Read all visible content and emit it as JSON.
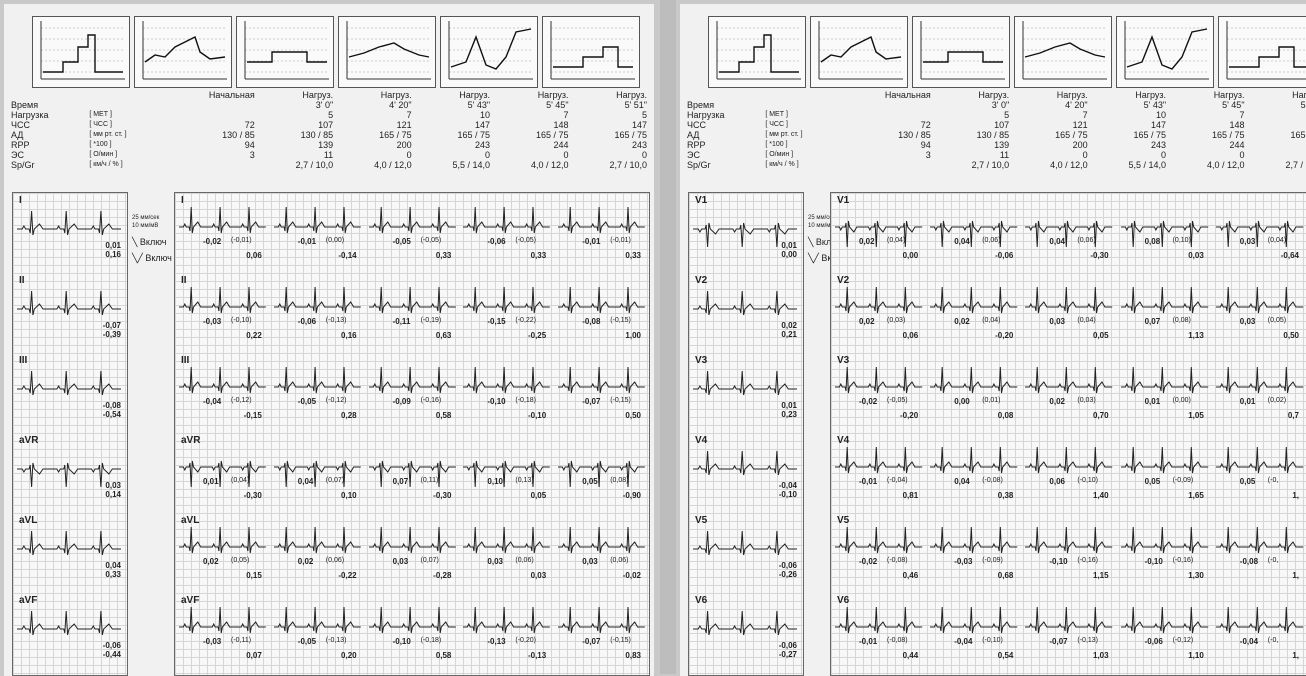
{
  "summary": {
    "col_headers": [
      "Начальная",
      "Нагруз.",
      "Нагруз.",
      "Нагруз.",
      "Нагруз.",
      "Нагруз."
    ],
    "rows": [
      {
        "label": "Время",
        "unit": "",
        "values": [
          "",
          "3' 0\"",
          "4' 20\"",
          "5' 43\"",
          "5' 45\"",
          "5' 51\""
        ]
      },
      {
        "label": "Нагрузка",
        "unit": "[ МЕТ ]",
        "values": [
          "",
          "5",
          "7",
          "10",
          "7",
          "5"
        ]
      },
      {
        "label": "ЧСС",
        "unit": "[ ЧСС ]",
        "values": [
          "72",
          "107",
          "121",
          "147",
          "148",
          "147"
        ]
      },
      {
        "label": "АД",
        "unit": "[ мм рт. ст. ]",
        "values": [
          "130 / 85",
          "130 / 85",
          "165 / 75",
          "165 / 75",
          "165 / 75",
          "165 / 75"
        ]
      },
      {
        "label": "RPP",
        "unit": "[ *100 ]",
        "values": [
          "94",
          "139",
          "200",
          "243",
          "244",
          "243"
        ]
      },
      {
        "label": "ЭС",
        "unit": "[ О/мин ]",
        "values": [
          "3",
          "11",
          "0",
          "0",
          "0",
          "0"
        ]
      },
      {
        "label": "Sp/Gr",
        "unit": "[ км/ч / % ]",
        "values": [
          "",
          "2,7 / 10,0",
          "4,0 / 12,0",
          "5,5 / 14,0",
          "4,0 / 12,0",
          "2,7 / 10,0"
        ]
      }
    ]
  },
  "calibration": {
    "speed": "25 мм/сек",
    "gain": "10 мм/мВ",
    "mark1": "Включ",
    "mark2": "Включ"
  },
  "left_sheet": {
    "baseline": [
      {
        "lead": "I",
        "v1": "0,01",
        "v2": "0,16"
      },
      {
        "lead": "II",
        "v1": "-0,07",
        "v2": "-0,39"
      },
      {
        "lead": "III",
        "v1": "-0,08",
        "v2": "-0,54"
      },
      {
        "lead": "aVR",
        "v1": "0,03",
        "v2": "0,14"
      },
      {
        "lead": "aVL",
        "v1": "0,04",
        "v2": "0,33"
      },
      {
        "lead": "aVF",
        "v1": "-0,06",
        "v2": "-0,44"
      }
    ],
    "stages": [
      {
        "lead": "I",
        "beats": [
          [
            "-0,02",
            "(-0,01)",
            "0,06"
          ],
          [
            "-0,01",
            "(0,00)",
            "-0,14"
          ],
          [
            "-0,05",
            "(-0,05)",
            "0,33"
          ],
          [
            "-0,06",
            "(-0,05)",
            "0,33"
          ],
          [
            "-0,01",
            "(-0,01)",
            "0,33"
          ]
        ]
      },
      {
        "lead": "II",
        "beats": [
          [
            "-0,03",
            "(-0,10)",
            "0,22"
          ],
          [
            "-0,06",
            "(-0,13)",
            "0,16"
          ],
          [
            "-0,11",
            "(-0,19)",
            "0,63"
          ],
          [
            "-0,15",
            "(-0,22)",
            "-0,25"
          ],
          [
            "-0,08",
            "(-0,15)",
            "1,00"
          ]
        ]
      },
      {
        "lead": "III",
        "beats": [
          [
            "-0,04",
            "(-0,12)",
            "-0,15"
          ],
          [
            "-0,05",
            "(-0,12)",
            "0,28"
          ],
          [
            "-0,09",
            "(-0,16)",
            "0,58"
          ],
          [
            "-0,10",
            "(-0,18)",
            "-0,10"
          ],
          [
            "-0,07",
            "(-0,15)",
            "0,50"
          ]
        ]
      },
      {
        "lead": "aVR",
        "beats": [
          [
            "0,01",
            "(0,04)",
            "-0,30"
          ],
          [
            "0,04",
            "(0,07)",
            "0,10"
          ],
          [
            "0,07",
            "(0,11)",
            "-0,30"
          ],
          [
            "0,10",
            "(0,13)",
            "0,05"
          ],
          [
            "0,05",
            "(0,08)",
            "-0,90"
          ]
        ]
      },
      {
        "lead": "aVL",
        "beats": [
          [
            "0,02",
            "(0,05)",
            "0,15"
          ],
          [
            "0,02",
            "(0,06)",
            "-0,22"
          ],
          [
            "0,03",
            "(0,07)",
            "-0,28"
          ],
          [
            "0,03",
            "(0,06)",
            "0,03"
          ],
          [
            "0,03",
            "(0,06)",
            "-0,02"
          ]
        ]
      },
      {
        "lead": "aVF",
        "beats": [
          [
            "-0,03",
            "(-0,11)",
            "0,07"
          ],
          [
            "-0,05",
            "(-0,13)",
            "0,20"
          ],
          [
            "-0,10",
            "(-0,18)",
            "0,58"
          ],
          [
            "-0,13",
            "(-0,20)",
            "-0,13"
          ],
          [
            "-0,07",
            "(-0,15)",
            "0,83"
          ]
        ]
      }
    ]
  },
  "right_sheet": {
    "baseline": [
      {
        "lead": "V1",
        "v1": "0,01",
        "v2": "0,00"
      },
      {
        "lead": "V2",
        "v1": "0,02",
        "v2": "0,21"
      },
      {
        "lead": "V3",
        "v1": "0,01",
        "v2": "0,23"
      },
      {
        "lead": "V4",
        "v1": "-0,04",
        "v2": "-0,10"
      },
      {
        "lead": "V5",
        "v1": "-0,06",
        "v2": "-0,26"
      },
      {
        "lead": "V6",
        "v1": "-0,06",
        "v2": "-0,27"
      }
    ],
    "stages": [
      {
        "lead": "V1",
        "beats": [
          [
            "0,02",
            "(0,04)",
            "0,00"
          ],
          [
            "0,04",
            "(0,06)",
            "-0,06"
          ],
          [
            "0,04",
            "(0,06)",
            "-0,30"
          ],
          [
            "0,08",
            "(0,10)",
            "0,03"
          ],
          [
            "0,03",
            "(0,04)",
            "-0,64"
          ]
        ]
      },
      {
        "lead": "V2",
        "beats": [
          [
            "0,02",
            "(0,03)",
            "0,06"
          ],
          [
            "0,02",
            "(0,04)",
            "-0,20"
          ],
          [
            "0,03",
            "(0,04)",
            "0,05"
          ],
          [
            "0,07",
            "(0,08)",
            "1,13"
          ],
          [
            "0,03",
            "(0,05)",
            "0,50"
          ]
        ]
      },
      {
        "lead": "V3",
        "beats": [
          [
            "-0,02",
            "(-0,05)",
            "-0,20"
          ],
          [
            "0,00",
            "(0,01)",
            "0,08"
          ],
          [
            "0,02",
            "(0,03)",
            "0,70"
          ],
          [
            "0,01",
            "(0,00)",
            "1,05"
          ],
          [
            "0,01",
            "(0,02)",
            "0,7"
          ]
        ]
      },
      {
        "lead": "V4",
        "beats": [
          [
            "-0,01",
            "(-0,04)",
            "0,81"
          ],
          [
            "0,04",
            "(-0,08)",
            "0,38"
          ],
          [
            "0,06",
            "(-0,10)",
            "1,40"
          ],
          [
            "0,05",
            "(-0,09)",
            "1,65"
          ],
          [
            "0,05",
            "(-0,",
            "1,"
          ]
        ]
      },
      {
        "lead": "V5",
        "beats": [
          [
            "-0,02",
            "(-0,08)",
            "0,46"
          ],
          [
            "-0,03",
            "(-0,09)",
            "0,68"
          ],
          [
            "-0,10",
            "(-0,16)",
            "1,15"
          ],
          [
            "-0,10",
            "(-0,16)",
            "1,30"
          ],
          [
            "-0,08",
            "(-0,",
            "1,"
          ]
        ]
      },
      {
        "lead": "V6",
        "beats": [
          [
            "-0,01",
            "(-0,08)",
            "0,44"
          ],
          [
            "-0,04",
            "(-0,10)",
            "0,54"
          ],
          [
            "-0,07",
            "(-0,13)",
            "1,03"
          ],
          [
            "-0,06",
            "(-0,12)",
            "1,10"
          ],
          [
            "-0,04",
            "(-0,",
            "1,"
          ]
        ]
      }
    ]
  }
}
